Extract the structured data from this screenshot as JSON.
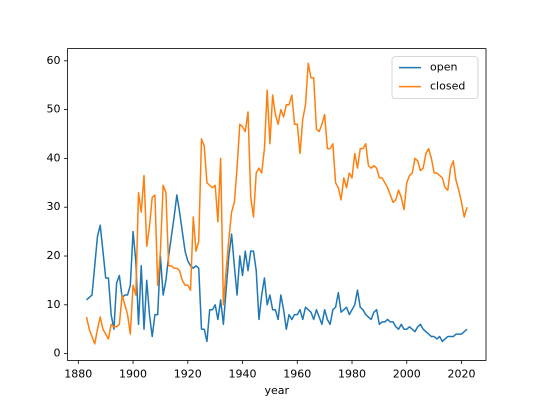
{
  "chart_data": {
    "type": "line",
    "x_label": "year",
    "x": [
      1883,
      1884,
      1885,
      1886,
      1887,
      1888,
      1889,
      1890,
      1891,
      1892,
      1893,
      1894,
      1895,
      1896,
      1897,
      1898,
      1899,
      1900,
      1901,
      1902,
      1903,
      1904,
      1905,
      1906,
      1907,
      1908,
      1909,
      1910,
      1911,
      1912,
      1913,
      1914,
      1915,
      1916,
      1917,
      1918,
      1919,
      1920,
      1921,
      1922,
      1923,
      1924,
      1925,
      1926,
      1927,
      1928,
      1929,
      1930,
      1931,
      1932,
      1933,
      1934,
      1935,
      1936,
      1937,
      1938,
      1939,
      1940,
      1941,
      1942,
      1943,
      1944,
      1945,
      1946,
      1947,
      1948,
      1949,
      1950,
      1951,
      1952,
      1953,
      1954,
      1955,
      1956,
      1957,
      1958,
      1959,
      1960,
      1961,
      1962,
      1963,
      1964,
      1965,
      1966,
      1967,
      1968,
      1969,
      1970,
      1971,
      1972,
      1973,
      1974,
      1975,
      1976,
      1977,
      1978,
      1979,
      1980,
      1981,
      1982,
      1983,
      1984,
      1985,
      1986,
      1987,
      1988,
      1989,
      1990,
      1991,
      1992,
      1993,
      1994,
      1995,
      1996,
      1997,
      1998,
      1999,
      2000,
      2001,
      2002,
      2003,
      2004,
      2005,
      2006,
      2007,
      2008,
      2009,
      2010,
      2011,
      2012,
      2013,
      2014,
      2015,
      2016,
      2017,
      2018,
      2019,
      2020,
      2021,
      2022
    ],
    "series": [
      {
        "name": "open",
        "color": "#1f77b4",
        "values": [
          11,
          11.5,
          12,
          18,
          24,
          26.3,
          21,
          15.5,
          15.5,
          8,
          5,
          14.5,
          16,
          11.5,
          12,
          12,
          14,
          25,
          19,
          6,
          18,
          5,
          15,
          8,
          3.5,
          8,
          8,
          20,
          12,
          15,
          20,
          24,
          28,
          32.5,
          29,
          25,
          21,
          19,
          18,
          17.5,
          18,
          17.5,
          5,
          5,
          2.5,
          9,
          9,
          10,
          7,
          11,
          6,
          13,
          20,
          24.5,
          18,
          12,
          20,
          16,
          21,
          17,
          21,
          21,
          17,
          7,
          12,
          15.5,
          10,
          12,
          9,
          9,
          7,
          12,
          9,
          5,
          8,
          7,
          8,
          8,
          9,
          7,
          9.5,
          9,
          8.5,
          7,
          9,
          7.5,
          6,
          9,
          7,
          6,
          9,
          9.5,
          12.5,
          8.5,
          9,
          9.5,
          8,
          9,
          10,
          13,
          9.5,
          9,
          8,
          7.5,
          7,
          8.5,
          9,
          6,
          6.5,
          6.5,
          7,
          6.5,
          6.5,
          5.5,
          5,
          6,
          5,
          5,
          5.5,
          5,
          4.5,
          5.5,
          6,
          5,
          4.5,
          4,
          3.5,
          3.5,
          3,
          3.5,
          2.5,
          3,
          3.5,
          3.5,
          3.5,
          4,
          4,
          4,
          4.5,
          5
        ]
      },
      {
        "name": "closed",
        "color": "#ff7f0e",
        "values": [
          7.5,
          5,
          3.5,
          2,
          5,
          7.5,
          5,
          4,
          3,
          6,
          5.5,
          5.5,
          6,
          12,
          10,
          8,
          4,
          14,
          12,
          33,
          29,
          36.5,
          22,
          26,
          32,
          32.5,
          14,
          21,
          34.5,
          33,
          18,
          18,
          17.5,
          17.5,
          17,
          15,
          14,
          14,
          13,
          28,
          21,
          23,
          44,
          42.5,
          35,
          34.5,
          34,
          34.5,
          27,
          40,
          10,
          17,
          23.5,
          29,
          31,
          38,
          47,
          46.5,
          45.5,
          49.5,
          32,
          28,
          37,
          38,
          37,
          42,
          54,
          43,
          53,
          49,
          47,
          50,
          48.5,
          51,
          51,
          53,
          47,
          47,
          41,
          48,
          51,
          59.5,
          56.5,
          56.5,
          46,
          45.5,
          47,
          49,
          42,
          42,
          43,
          35,
          34,
          31.5,
          36,
          34,
          37,
          36,
          41,
          38,
          42,
          42,
          43,
          38.5,
          38,
          38.5,
          38,
          36,
          36,
          35,
          34,
          32.5,
          31,
          31.5,
          33.5,
          32,
          29.5,
          35,
          36.5,
          37,
          40,
          39.5,
          37.5,
          38,
          41,
          42,
          40,
          37,
          37,
          36.5,
          36,
          34,
          33.5,
          38,
          39.5,
          35.5,
          33.5,
          31,
          28,
          30
        ]
      }
    ],
    "xlim": [
      1876.05,
      2028.95
    ],
    "ylim": [
      -1.4,
      62.5
    ],
    "xticks": [
      1880,
      1900,
      1920,
      1940,
      1960,
      1980,
      2000,
      2020
    ],
    "yticks": [
      0,
      10,
      20,
      30,
      40,
      50,
      60
    ],
    "grid": false,
    "legend": "upper right"
  }
}
